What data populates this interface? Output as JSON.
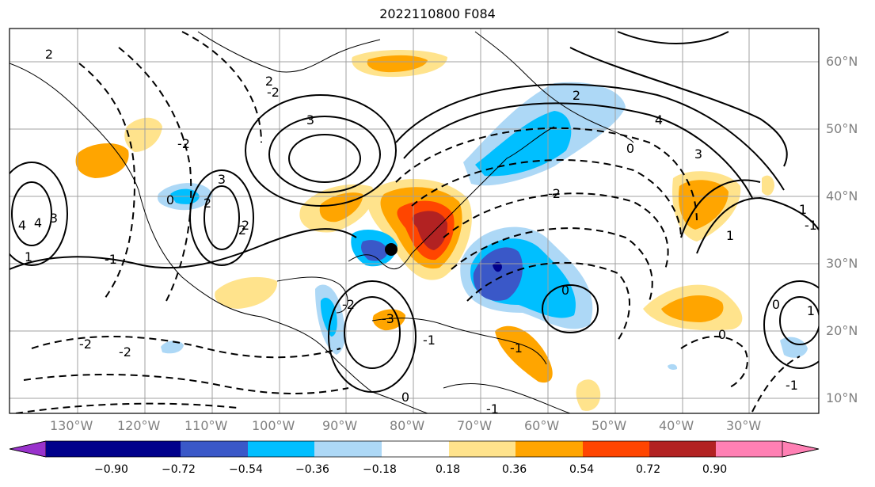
{
  "title": "2022110800 F084",
  "map": {
    "lon_range": [
      -138,
      -16
    ],
    "lat_range": [
      8,
      65
    ],
    "lon_labels": [
      "130°W",
      "120°W",
      "110°W",
      "100°W",
      "90°W",
      "80°W",
      "70°W",
      "60°W",
      "50°W",
      "40°W",
      "30°W"
    ],
    "lat_labels": [
      "60°N",
      "50°N",
      "40°N",
      "30°N",
      "20°N",
      "10°N"
    ],
    "contour_labels": [
      "2",
      "2",
      "2",
      "4",
      "4",
      "3",
      "3",
      "3",
      "-2",
      "-2",
      "-2",
      "0",
      "0",
      "0",
      "0",
      "-1",
      "-1",
      "1",
      "1",
      "-2",
      "-2",
      "2",
      "2",
      "-3",
      "-2",
      "-1",
      "-1",
      "1",
      "1",
      "4",
      "3",
      "2",
      "-1",
      "-1",
      "0",
      "0"
    ],
    "marker": {
      "label": "dot-marker",
      "lon": -84.5,
      "lat": 32.2
    },
    "colors": {
      "contour": "#000000",
      "grid": "#a0a0a0",
      "land": "#000000"
    }
  },
  "colorbar": {
    "ticks": [
      "−0.90",
      "−0.72",
      "−0.54",
      "−0.36",
      "−0.18",
      "0.18",
      "0.36",
      "0.54",
      "0.72",
      "0.90"
    ],
    "colors": [
      "#9932cc",
      "#00008b",
      "#3a58c8",
      "#00bfff",
      "#add8f6",
      "#ffffff",
      "#ffe38c",
      "#ffa500",
      "#ff4500",
      "#b22222",
      "#ff80b4"
    ]
  }
}
